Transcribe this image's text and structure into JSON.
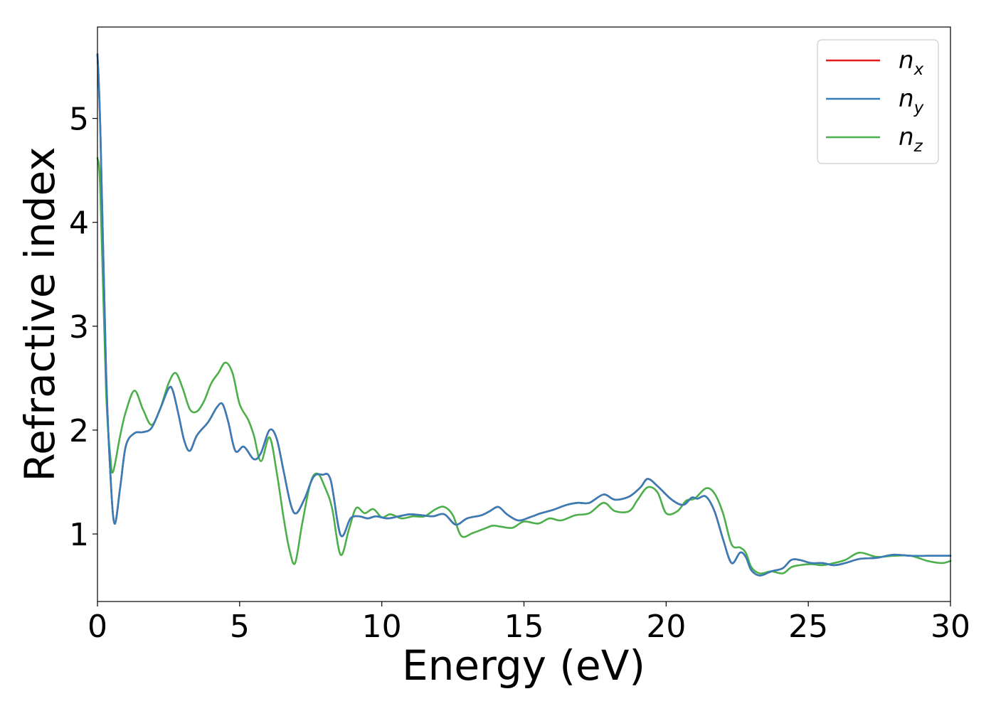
{
  "chart_data": {
    "type": "line",
    "title": "",
    "xlabel": "Energy (eV)",
    "ylabel": "Refractive index",
    "xlim": [
      0,
      30
    ],
    "ylim": [
      0.35,
      5.88
    ],
    "xticks": [
      "0",
      "5",
      "10",
      "15",
      "20",
      "25",
      "30"
    ],
    "yticks": [
      "1",
      "2",
      "3",
      "4",
      "5"
    ],
    "grid": false,
    "legend_position": "top-right",
    "series": [
      {
        "name": "n",
        "subscript": "x",
        "color": "#e41a1c",
        "x": [
          0,
          0.1,
          0.3,
          0.45,
          0.6,
          0.8,
          1.0,
          1.3,
          1.6,
          1.9,
          2.2,
          2.5,
          2.65,
          2.85,
          3.05,
          3.25,
          3.5,
          3.9,
          4.2,
          4.4,
          4.6,
          4.85,
          5.15,
          5.5,
          5.75,
          6.05,
          6.3,
          6.55,
          6.8,
          7.0,
          7.3,
          7.6,
          7.9,
          8.2,
          8.55,
          8.9,
          9.2,
          9.5,
          9.8,
          10.2,
          10.6,
          11.0,
          11.4,
          11.8,
          12.2,
          12.6,
          13.0,
          13.5,
          13.8,
          14.1,
          14.4,
          14.8,
          15.2,
          15.6,
          16.0,
          16.5,
          16.9,
          17.3,
          17.8,
          18.2,
          18.7,
          19.1,
          19.35,
          19.7,
          20.2,
          20.6,
          20.9,
          21.1,
          21.4,
          21.7,
          22.0,
          22.3,
          22.6,
          22.8,
          23.0,
          23.3,
          23.7,
          24.1,
          24.4,
          24.7,
          25.1,
          25.5,
          25.9,
          26.3,
          26.8,
          27.4,
          28.0,
          28.6,
          29.2,
          29.7,
          30.0
        ],
        "y": [
          5.62,
          4.9,
          2.6,
          1.6,
          1.1,
          1.45,
          1.85,
          1.97,
          1.98,
          2.02,
          2.2,
          2.4,
          2.38,
          2.15,
          1.9,
          1.8,
          1.95,
          2.08,
          2.22,
          2.25,
          2.08,
          1.8,
          1.84,
          1.72,
          1.78,
          2.0,
          1.92,
          1.6,
          1.28,
          1.2,
          1.35,
          1.55,
          1.57,
          1.52,
          0.99,
          1.15,
          1.17,
          1.15,
          1.17,
          1.15,
          1.17,
          1.19,
          1.18,
          1.17,
          1.19,
          1.09,
          1.15,
          1.18,
          1.22,
          1.26,
          1.19,
          1.13,
          1.16,
          1.2,
          1.23,
          1.28,
          1.3,
          1.3,
          1.38,
          1.33,
          1.36,
          1.45,
          1.53,
          1.46,
          1.33,
          1.28,
          1.35,
          1.34,
          1.36,
          1.22,
          0.95,
          0.72,
          0.82,
          0.78,
          0.65,
          0.6,
          0.64,
          0.67,
          0.75,
          0.75,
          0.72,
          0.72,
          0.7,
          0.72,
          0.76,
          0.77,
          0.8,
          0.79,
          0.79,
          0.79,
          0.79
        ]
      },
      {
        "name": "n",
        "subscript": "y",
        "color": "#377eb8",
        "x": [
          0,
          0.1,
          0.3,
          0.45,
          0.6,
          0.8,
          1.0,
          1.3,
          1.6,
          1.9,
          2.2,
          2.5,
          2.65,
          2.85,
          3.05,
          3.25,
          3.5,
          3.9,
          4.2,
          4.4,
          4.6,
          4.85,
          5.15,
          5.5,
          5.75,
          6.05,
          6.3,
          6.55,
          6.8,
          7.0,
          7.3,
          7.6,
          7.9,
          8.2,
          8.55,
          8.9,
          9.2,
          9.5,
          9.8,
          10.2,
          10.6,
          11.0,
          11.4,
          11.8,
          12.2,
          12.6,
          13.0,
          13.5,
          13.8,
          14.1,
          14.4,
          14.8,
          15.2,
          15.6,
          16.0,
          16.5,
          16.9,
          17.3,
          17.8,
          18.2,
          18.7,
          19.1,
          19.35,
          19.7,
          20.2,
          20.6,
          20.9,
          21.1,
          21.4,
          21.7,
          22.0,
          22.3,
          22.6,
          22.8,
          23.0,
          23.3,
          23.7,
          24.1,
          24.4,
          24.7,
          25.1,
          25.5,
          25.9,
          26.3,
          26.8,
          27.4,
          28.0,
          28.6,
          29.2,
          29.7,
          30.0
        ],
        "y": [
          5.62,
          4.9,
          2.6,
          1.6,
          1.1,
          1.45,
          1.85,
          1.97,
          1.98,
          2.02,
          2.2,
          2.4,
          2.38,
          2.15,
          1.9,
          1.8,
          1.95,
          2.08,
          2.22,
          2.25,
          2.08,
          1.8,
          1.84,
          1.72,
          1.78,
          2.0,
          1.92,
          1.6,
          1.28,
          1.2,
          1.35,
          1.55,
          1.57,
          1.52,
          0.99,
          1.15,
          1.17,
          1.15,
          1.17,
          1.15,
          1.17,
          1.19,
          1.18,
          1.17,
          1.19,
          1.09,
          1.15,
          1.18,
          1.22,
          1.26,
          1.19,
          1.13,
          1.16,
          1.2,
          1.23,
          1.28,
          1.3,
          1.3,
          1.38,
          1.33,
          1.36,
          1.45,
          1.53,
          1.46,
          1.33,
          1.28,
          1.35,
          1.34,
          1.36,
          1.22,
          0.95,
          0.72,
          0.82,
          0.78,
          0.65,
          0.6,
          0.64,
          0.67,
          0.75,
          0.75,
          0.72,
          0.72,
          0.7,
          0.72,
          0.76,
          0.77,
          0.8,
          0.79,
          0.79,
          0.79,
          0.79
        ]
      },
      {
        "name": "n",
        "subscript": "z",
        "color": "#4daf4a",
        "x": [
          0,
          0.1,
          0.3,
          0.45,
          0.55,
          0.8,
          1.0,
          1.3,
          1.6,
          1.9,
          2.2,
          2.5,
          2.75,
          3.0,
          3.25,
          3.5,
          3.75,
          4.0,
          4.25,
          4.5,
          4.75,
          5.0,
          5.3,
          5.5,
          5.75,
          6.05,
          6.3,
          6.55,
          6.75,
          6.95,
          7.2,
          7.5,
          7.75,
          8.0,
          8.25,
          8.55,
          8.85,
          9.1,
          9.4,
          9.7,
          10.0,
          10.3,
          10.7,
          11.1,
          11.5,
          11.9,
          12.2,
          12.5,
          12.8,
          13.2,
          13.6,
          13.9,
          14.2,
          14.6,
          15.0,
          15.5,
          15.9,
          16.3,
          16.8,
          17.3,
          17.8,
          18.2,
          18.7,
          19.0,
          19.35,
          19.7,
          20.0,
          20.4,
          20.7,
          21.0,
          21.4,
          21.7,
          22.0,
          22.3,
          22.6,
          22.8,
          23.0,
          23.3,
          23.7,
          24.1,
          24.4,
          24.7,
          25.1,
          25.5,
          25.9,
          26.3,
          26.8,
          27.4,
          28.0,
          28.6,
          29.2,
          29.7,
          30.0
        ],
        "y": [
          4.62,
          4.3,
          2.4,
          1.75,
          1.6,
          1.95,
          2.18,
          2.38,
          2.2,
          2.05,
          2.2,
          2.45,
          2.55,
          2.4,
          2.2,
          2.18,
          2.28,
          2.45,
          2.55,
          2.65,
          2.55,
          2.25,
          2.1,
          1.95,
          1.7,
          1.93,
          1.6,
          1.15,
          0.85,
          0.72,
          1.1,
          1.5,
          1.58,
          1.45,
          1.25,
          0.8,
          1.05,
          1.25,
          1.2,
          1.24,
          1.16,
          1.19,
          1.15,
          1.17,
          1.17,
          1.24,
          1.26,
          1.18,
          0.98,
          1.01,
          1.05,
          1.08,
          1.07,
          1.06,
          1.12,
          1.1,
          1.15,
          1.13,
          1.18,
          1.2,
          1.3,
          1.22,
          1.22,
          1.33,
          1.45,
          1.4,
          1.2,
          1.22,
          1.32,
          1.34,
          1.44,
          1.39,
          1.2,
          0.9,
          0.87,
          0.82,
          0.68,
          0.62,
          0.64,
          0.62,
          0.68,
          0.7,
          0.71,
          0.7,
          0.72,
          0.75,
          0.82,
          0.78,
          0.79,
          0.79,
          0.74,
          0.72,
          0.74
        ]
      }
    ]
  }
}
